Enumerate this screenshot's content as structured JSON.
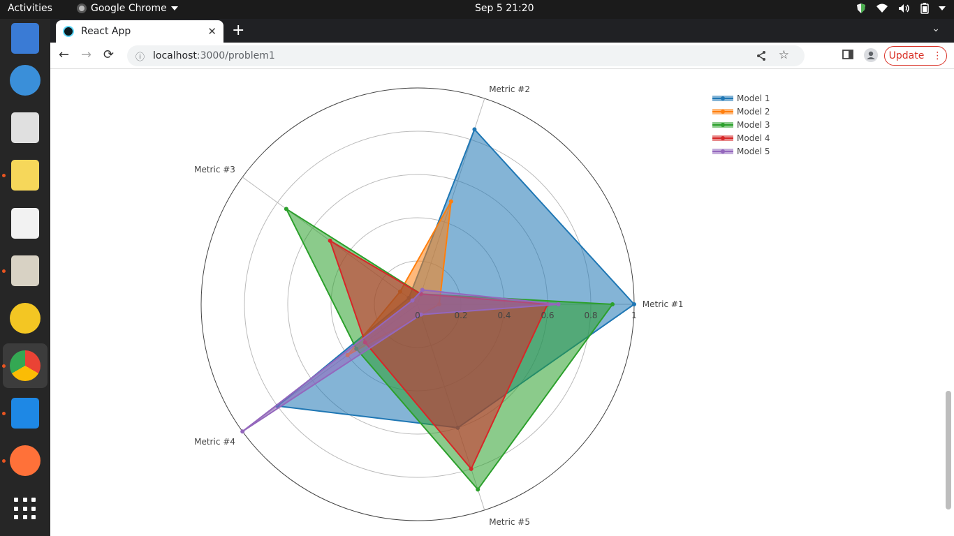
{
  "os": {
    "activities": "Activities",
    "app_name": "Google Chrome",
    "clock": "Sep 5  21:20"
  },
  "dock": {
    "items": [
      {
        "name": "text-editor-app",
        "color": "#3a7bd5",
        "running": false
      },
      {
        "name": "help-app",
        "color": "#3a8fd9",
        "running": false
      },
      {
        "name": "document-viewer-app",
        "color": "#e0e0e0",
        "running": false
      },
      {
        "name": "sticky-notes-app",
        "color": "#f6d75a",
        "running": true
      },
      {
        "name": "text-editor-2-app",
        "color": "#f2f2f2",
        "running": false
      },
      {
        "name": "files-app",
        "color": "#d8d2c4",
        "running": true
      },
      {
        "name": "rhythmbox-app",
        "color": "#f3c623",
        "running": false
      },
      {
        "name": "chrome-app",
        "color": "#4285f4",
        "running": true
      },
      {
        "name": "vscode-app",
        "color": "#1e88e5",
        "running": true
      },
      {
        "name": "firefox-app",
        "color": "#ff7139",
        "running": true
      },
      {
        "name": "show-apps",
        "color": "#ffffff",
        "running": false
      }
    ]
  },
  "browser": {
    "tab_title": "React App",
    "url_host": "localhost",
    "url_path": ":3000/problem1",
    "update_label": "Update"
  },
  "chart_data": {
    "type": "radar",
    "axes": [
      "Metric #1",
      "Metric #2",
      "Metric #3",
      "Metric #4",
      "Metric #5"
    ],
    "rlim": [
      0,
      1
    ],
    "radial_ticks": [
      "0",
      "0.2",
      "0.4",
      "0.6",
      "0.8",
      "1"
    ],
    "radial_tick_values": [
      0,
      0.2,
      0.4,
      0.6,
      0.8,
      1
    ],
    "grid": true,
    "legend": "top-right",
    "series": [
      {
        "name": "Model 1",
        "color": "#1f77b4",
        "values": [
          1.0,
          0.85,
          0.05,
          0.8,
          0.6
        ]
      },
      {
        "name": "Model 2",
        "color": "#ff7f0e",
        "values": [
          0.1,
          0.5,
          0.1,
          0.4,
          0.05
        ]
      },
      {
        "name": "Model 3",
        "color": "#2ca02c",
        "values": [
          0.9,
          0.05,
          0.75,
          0.35,
          0.9
        ]
      },
      {
        "name": "Model 4",
        "color": "#d62728",
        "values": [
          0.6,
          0.05,
          0.5,
          0.3,
          0.8
        ]
      },
      {
        "name": "Model 5",
        "color": "#9467bd",
        "values": [
          0.65,
          0.07,
          0.03,
          1.0,
          0.05
        ]
      }
    ]
  }
}
